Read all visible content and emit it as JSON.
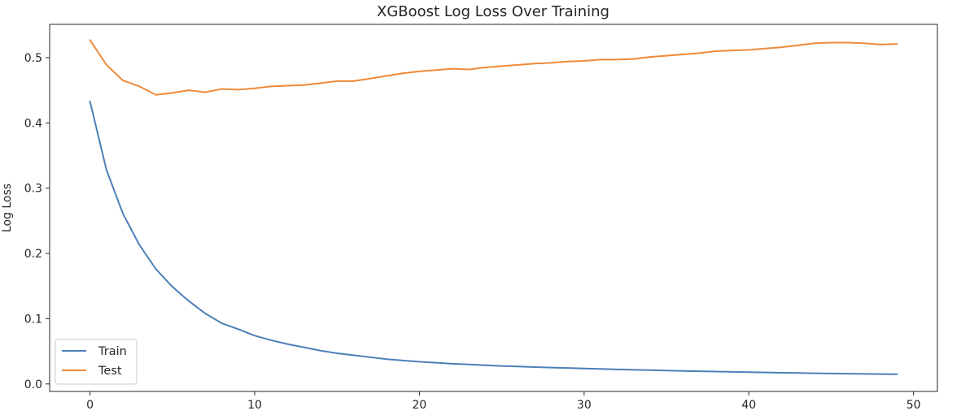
{
  "chart_data": {
    "type": "line",
    "title": "XGBoost Log Loss Over Training",
    "xlabel": "",
    "ylabel": "Log Loss",
    "xlim": [
      -2.45,
      51.45
    ],
    "ylim": [
      -0.0115,
      0.551
    ],
    "xticks": [
      0,
      10,
      20,
      30,
      40,
      50
    ],
    "yticks": [
      0.0,
      0.1,
      0.2,
      0.3,
      0.4,
      0.5
    ],
    "xtick_labels": [
      "0",
      "10",
      "20",
      "30",
      "40",
      "50"
    ],
    "ytick_labels": [
      "0.0",
      "0.1",
      "0.2",
      "0.3",
      "0.4",
      "0.5"
    ],
    "grid": false,
    "legend_position": "lower-left",
    "x": [
      0,
      1,
      2,
      3,
      4,
      5,
      6,
      7,
      8,
      9,
      10,
      11,
      12,
      13,
      14,
      15,
      16,
      17,
      18,
      19,
      20,
      21,
      22,
      23,
      24,
      25,
      26,
      27,
      28,
      29,
      30,
      31,
      32,
      33,
      34,
      35,
      36,
      37,
      38,
      39,
      40,
      41,
      42,
      43,
      44,
      45,
      46,
      47,
      48,
      49
    ],
    "series": [
      {
        "name": "Train",
        "color": "#4c7fb8",
        "values": [
          0.433,
          0.328,
          0.261,
          0.213,
          0.176,
          0.149,
          0.127,
          0.108,
          0.093,
          0.084,
          0.074,
          0.067,
          0.061,
          0.056,
          0.051,
          0.047,
          0.044,
          0.041,
          0.038,
          0.036,
          0.034,
          0.0325,
          0.031,
          0.0298,
          0.0287,
          0.0276,
          0.0267,
          0.0259,
          0.0251,
          0.0244,
          0.0237,
          0.023,
          0.0223,
          0.0217,
          0.0211,
          0.0205,
          0.02,
          0.0195,
          0.019,
          0.0185,
          0.018,
          0.0176,
          0.0172,
          0.0168,
          0.0164,
          0.016,
          0.0157,
          0.0154,
          0.0151,
          0.0148
        ]
      },
      {
        "name": "Test",
        "color": "#ee8a3a",
        "values": [
          0.527,
          0.489,
          0.465,
          0.456,
          0.443,
          0.446,
          0.45,
          0.447,
          0.452,
          0.451,
          0.453,
          0.456,
          0.457,
          0.458,
          0.461,
          0.464,
          0.464,
          0.468,
          0.472,
          0.476,
          0.479,
          0.481,
          0.483,
          0.482,
          0.485,
          0.487,
          0.489,
          0.491,
          0.492,
          0.494,
          0.495,
          0.497,
          0.497,
          0.498,
          0.501,
          0.503,
          0.505,
          0.507,
          0.51,
          0.511,
          0.512,
          0.514,
          0.516,
          0.519,
          0.522,
          0.523,
          0.523,
          0.522,
          0.52,
          0.521
        ]
      }
    ]
  }
}
